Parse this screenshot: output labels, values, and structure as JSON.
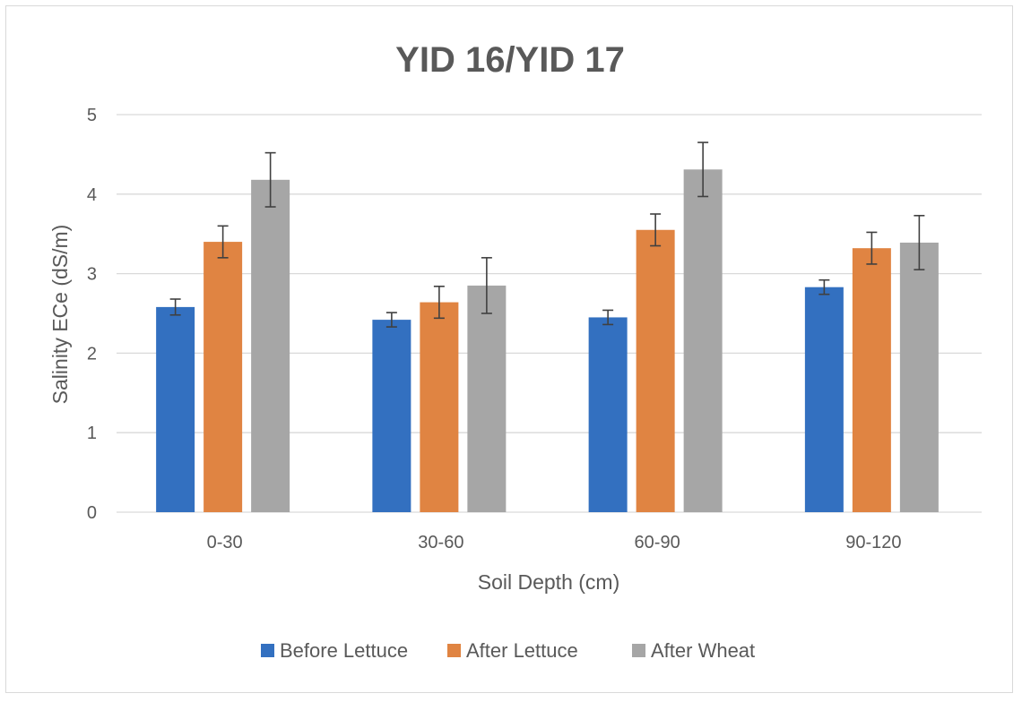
{
  "chart_data": {
    "type": "bar",
    "title": "YID 16/YID 17",
    "xlabel": "Soil Depth (cm)",
    "ylabel": "Salinity ECe (dS/m)",
    "ylim": [
      0,
      5
    ],
    "yticks": [
      0,
      1,
      2,
      3,
      4,
      5
    ],
    "grid": true,
    "legend_position": "bottom",
    "categories": [
      "0-30",
      "30-60",
      "60-90",
      "90-120"
    ],
    "series": [
      {
        "name": "Before Lettuce",
        "color": "#3370c0",
        "values": [
          2.58,
          2.42,
          2.45,
          2.83
        ],
        "errors": [
          0.1,
          0.09,
          0.09,
          0.09
        ]
      },
      {
        "name": "After Lettuce",
        "color": "#e08442",
        "values": [
          3.4,
          2.64,
          3.55,
          3.32
        ],
        "errors": [
          0.2,
          0.2,
          0.2,
          0.2
        ]
      },
      {
        "name": "After Wheat",
        "color": "#a6a6a6",
        "values": [
          4.18,
          2.85,
          4.31,
          3.39
        ],
        "errors": [
          0.34,
          0.35,
          0.34,
          0.34
        ]
      }
    ]
  }
}
